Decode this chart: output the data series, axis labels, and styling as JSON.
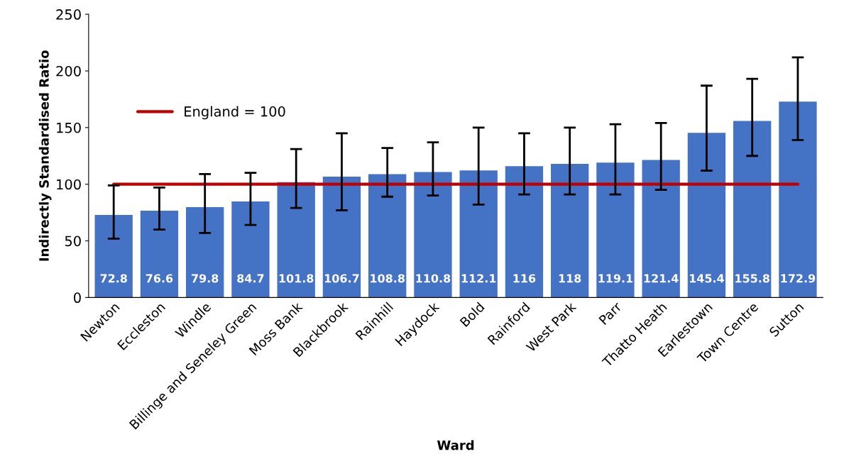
{
  "chart_data": {
    "type": "bar",
    "xlabel": "Ward",
    "ylabel": "Indirectly Standardised Ratio",
    "categories": [
      "Newton",
      "Eccleston",
      "Windle",
      "Billinge and Seneley Green",
      "Moss Bank",
      "Blackbrook",
      "Rainhill",
      "Haydock",
      "Bold",
      "Rainford",
      "West Park",
      "Parr",
      "Thatto Heath",
      "Earlestown",
      "Town Centre",
      "Sutton"
    ],
    "values": [
      72.8,
      76.6,
      79.8,
      84.7,
      101.8,
      106.7,
      108.8,
      110.8,
      112.1,
      116,
      118,
      119.1,
      121.4,
      145.4,
      155.8,
      172.9
    ],
    "errors": [
      [
        52,
        99
      ],
      [
        60,
        97
      ],
      [
        57,
        109
      ],
      [
        64,
        110
      ],
      [
        79,
        131
      ],
      [
        77,
        145
      ],
      [
        89,
        132
      ],
      [
        90,
        137
      ],
      [
        82,
        150
      ],
      [
        91,
        145
      ],
      [
        91,
        150
      ],
      [
        91,
        153
      ],
      [
        95,
        154
      ],
      [
        112,
        187
      ],
      [
        125,
        193
      ],
      [
        139,
        212
      ]
    ],
    "color": "#4472c4",
    "data_labels": true,
    "ref_lines": [
      {
        "axis": "y",
        "value": 100,
        "label": "England = 100",
        "color": "#c00000"
      }
    ],
    "ylim": [
      0,
      250
    ],
    "yticks": [
      0,
      50,
      100,
      150,
      200,
      250
    ],
    "grid": false,
    "legend": "top left"
  }
}
